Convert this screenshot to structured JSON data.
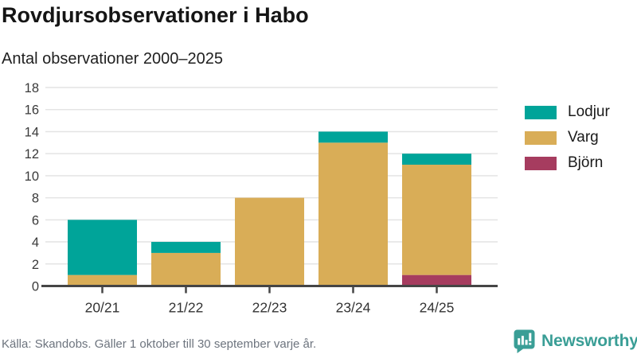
{
  "header": {
    "title": "Rovdjursobservationer i Habo",
    "subtitle": "Antal observationer 2000–2025"
  },
  "chart_data": {
    "type": "bar",
    "stacked": true,
    "title": "Rovdjursobservationer i Habo",
    "subtitle": "Antal observationer 2000–2025",
    "categories": [
      "20/21",
      "21/22",
      "22/23",
      "23/24",
      "24/25"
    ],
    "series": [
      {
        "name": "Lodjur",
        "color": "#00a499",
        "values": [
          5,
          1,
          0,
          1,
          1
        ]
      },
      {
        "name": "Varg",
        "color": "#d9ad57",
        "values": [
          1,
          3,
          8,
          13,
          10
        ]
      },
      {
        "name": "Björn",
        "color": "#a63c5f",
        "values": [
          0,
          0,
          0,
          0,
          1
        ]
      }
    ],
    "stack_totals": [
      6,
      4,
      8,
      14,
      12
    ],
    "stack_order_bottom_to_top": [
      "Björn",
      "Varg",
      "Lodjur"
    ],
    "xlabel": "",
    "ylabel": "",
    "ylim": [
      0,
      18
    ],
    "yticks": [
      0,
      2,
      4,
      6,
      8,
      10,
      12,
      14,
      16,
      18
    ],
    "grid": true,
    "legend_position": "right"
  },
  "footer": {
    "source": "Källa: Skandobs. Gäller 1 oktober till 30 september varje år.",
    "brand": "Newsworthy",
    "brand_icon": "bar-chart-speech-bubble-icon",
    "brand_color": "#3a9e96"
  },
  "colors": {
    "lodjur": "#00a499",
    "varg": "#d9ad57",
    "bjorn": "#a63c5f",
    "gridline": "#e4e4e4",
    "axis": "#454545",
    "text_dark": "#151515",
    "text_gray": "#6d747e"
  }
}
